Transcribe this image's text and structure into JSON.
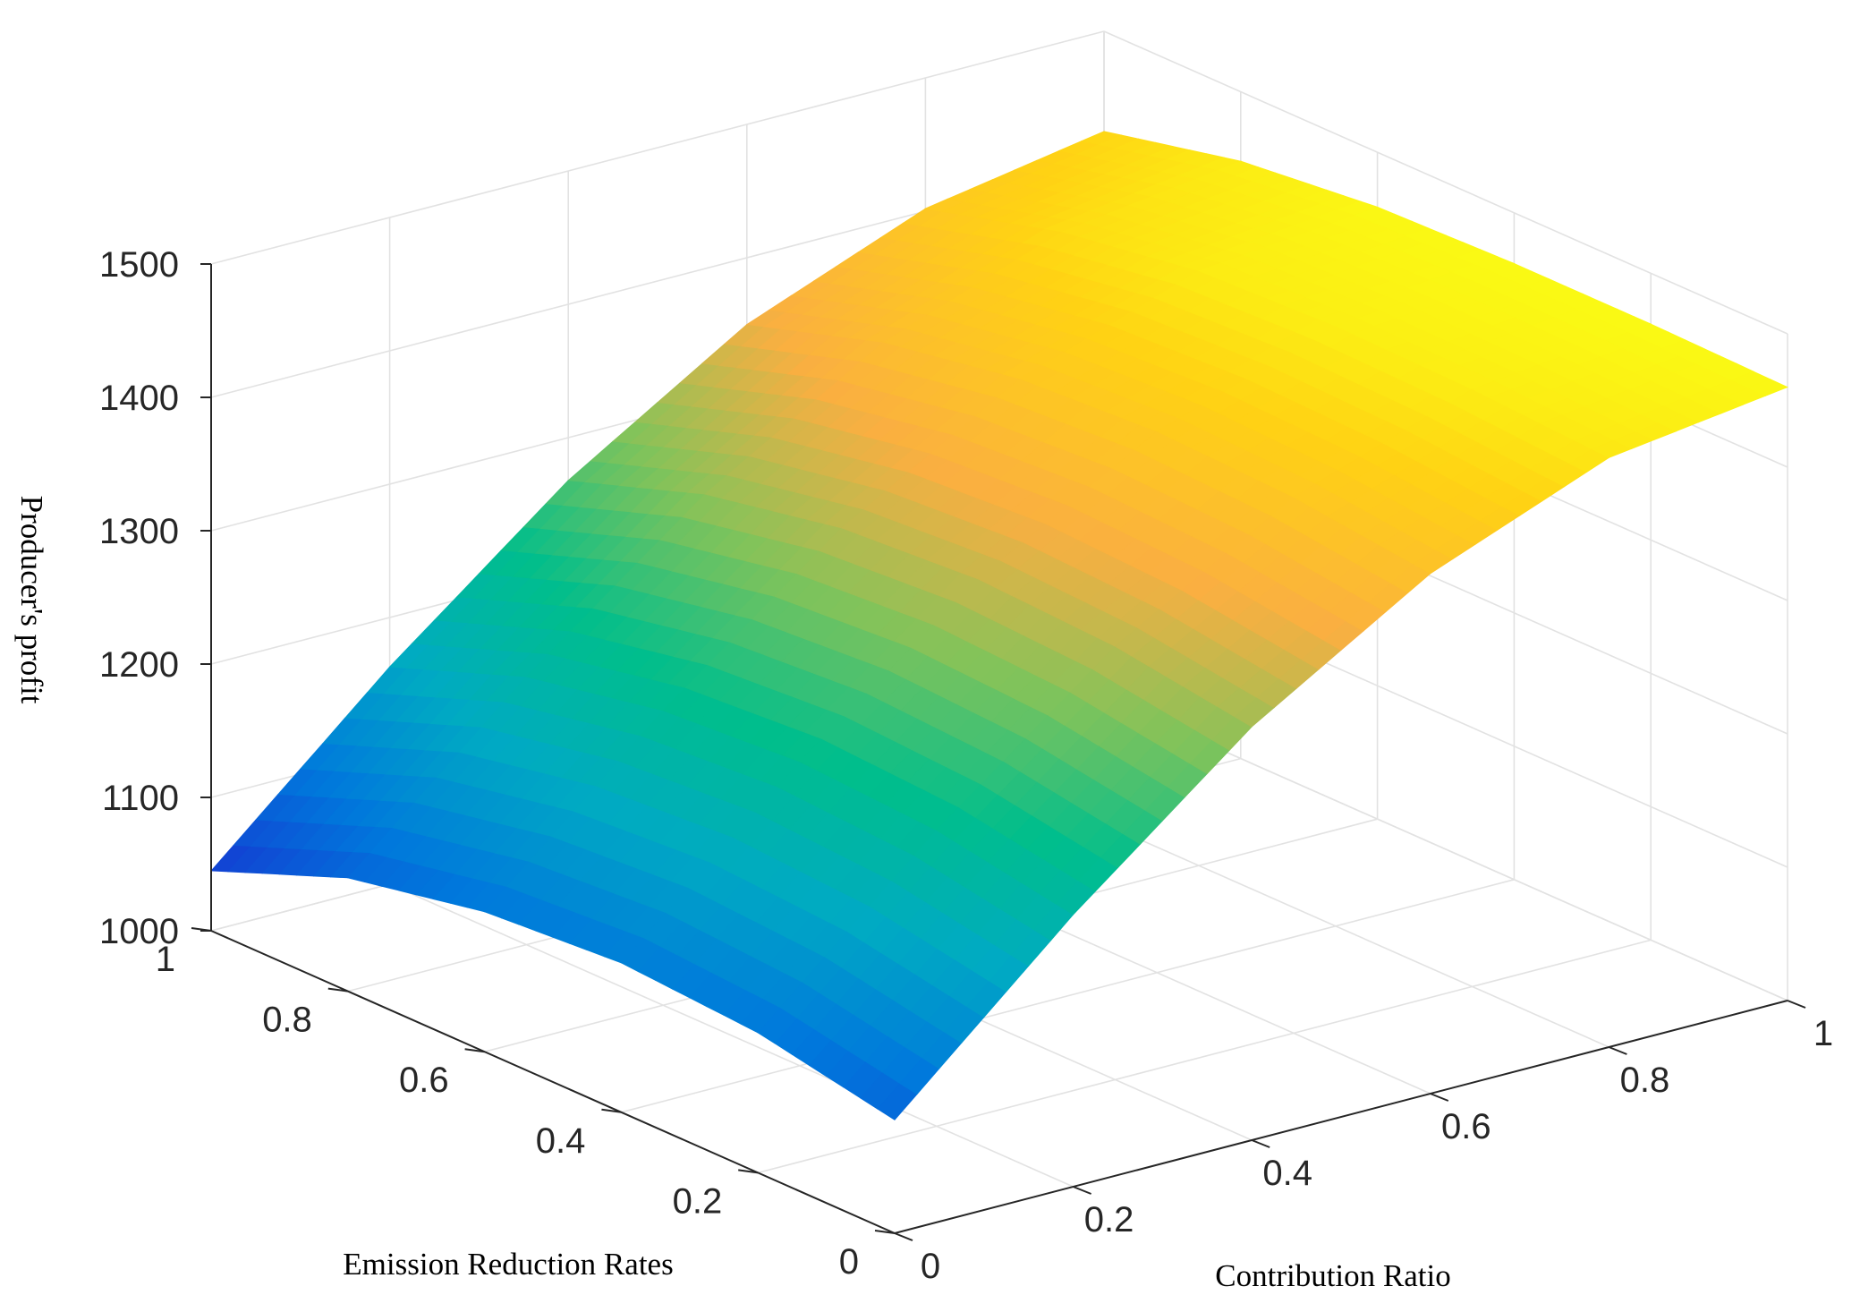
{
  "chart_data": {
    "type": "surface",
    "title": "",
    "xlabel": "Contribution Ratio",
    "ylabel": "Emission Reduction Rates",
    "zlabel": "Producer's profit",
    "xlim": [
      0,
      1
    ],
    "ylim": [
      0,
      1
    ],
    "zlim": [
      1000,
      1500
    ],
    "xticks": [
      "0",
      "0.2",
      "0.4",
      "0.6",
      "0.8",
      "1"
    ],
    "yticks": [
      "0",
      "0.2",
      "0.4",
      "0.6",
      "0.8",
      "1"
    ],
    "zticks": [
      "1000",
      "1100",
      "1200",
      "1300",
      "1400",
      "1500"
    ],
    "grid": true,
    "colormap": "parula",
    "x": [
      0,
      0.2,
      0.4,
      0.6,
      0.8,
      1
    ],
    "y": [
      0,
      0.2,
      0.4,
      0.6,
      0.8,
      1
    ],
    "z_description": "rows = Emission Reduction Rates, cols = Contribution Ratio",
    "z": [
      [
        1085,
        1204,
        1310,
        1390,
        1442,
        1460
      ],
      [
        1105,
        1222,
        1325,
        1402,
        1448,
        1462
      ],
      [
        1112,
        1228,
        1330,
        1406,
        1450,
        1462
      ],
      [
        1105,
        1221,
        1323,
        1400,
        1446,
        1459
      ],
      [
        1085,
        1201,
        1303,
        1382,
        1430,
        1448
      ],
      [
        1045,
        1163,
        1268,
        1350,
        1402,
        1425
      ]
    ]
  }
}
